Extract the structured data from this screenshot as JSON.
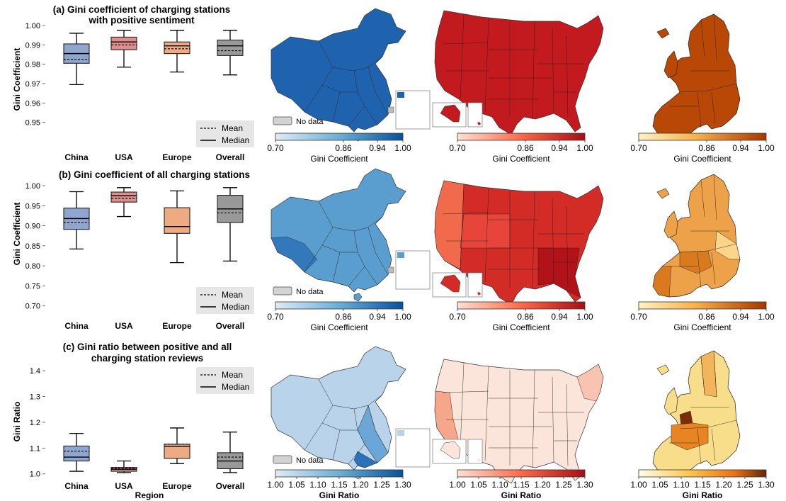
{
  "chart_data": [
    {
      "type": "box",
      "title_lines": [
        "(a) Gini coefficient of charging stations",
        "with positive sentiment"
      ],
      "ylabel": "Gini Coefficient",
      "xlabel": "",
      "ylim": [
        0.94,
        1.0
      ],
      "yticks": [
        "0.95",
        "0.96",
        "0.97",
        "0.98",
        "0.99",
        "1.00"
      ],
      "categories": [
        "China",
        "USA",
        "Europe",
        "Overall"
      ],
      "colors": [
        "#8fa6d0",
        "#de8c8c",
        "#eeaa80",
        "#999999"
      ],
      "boxes": [
        {
          "whislo": 0.9695,
          "q1": 0.9805,
          "med": 0.9855,
          "mean": 0.9825,
          "q3": 0.9905,
          "whishi": 0.996
        },
        {
          "whislo": 0.9785,
          "q1": 0.9875,
          "med": 0.9915,
          "mean": 0.99,
          "q3": 0.994,
          "whishi": 0.9975
        },
        {
          "whislo": 0.976,
          "q1": 0.9855,
          "med": 0.9895,
          "mean": 0.988,
          "q3": 0.9915,
          "whishi": 0.9975
        },
        {
          "whislo": 0.9745,
          "q1": 0.9845,
          "med": 0.9895,
          "mean": 0.987,
          "q3": 0.9925,
          "whishi": 0.9975
        }
      ],
      "legend": {
        "mean_label": "Mean",
        "median_label": "Median",
        "placement": "bottom-right"
      }
    },
    {
      "type": "box",
      "title_lines": [
        "(b) Gini coefficient of all charging stations"
      ],
      "ylabel": "Gini Coefficient",
      "xlabel": "",
      "ylim": [
        0.68,
        1.0
      ],
      "yticks": [
        "0.70",
        "0.75",
        "0.80",
        "0.85",
        "0.90",
        "0.95",
        "1.00"
      ],
      "categories": [
        "China",
        "USA",
        "Europe",
        "Overall"
      ],
      "colors": [
        "#8fa6d0",
        "#de8c8c",
        "#eeaa80",
        "#999999"
      ],
      "boxes": [
        {
          "whislo": 0.842,
          "q1": 0.891,
          "med": 0.918,
          "mean": 0.908,
          "q3": 0.944,
          "whishi": 0.985
        },
        {
          "whislo": 0.923,
          "q1": 0.959,
          "med": 0.975,
          "mean": 0.968,
          "q3": 0.984,
          "whishi": 0.995
        },
        {
          "whislo": 0.808,
          "q1": 0.881,
          "med": 0.898,
          "mean": 0.898,
          "q3": 0.945,
          "whishi": 0.987
        },
        {
          "whislo": 0.812,
          "q1": 0.908,
          "med": 0.942,
          "mean": 0.932,
          "q3": 0.976,
          "whishi": 0.995
        }
      ],
      "legend": {
        "mean_label": "Mean",
        "median_label": "Median",
        "placement": "bottom-right"
      }
    },
    {
      "type": "box",
      "title_lines": [
        "(c) Gini ratio between positive and all",
        "charging station reviews"
      ],
      "ylabel": "Gini Ratio",
      "xlabel": "Region",
      "ylim": [
        0.98,
        1.45
      ],
      "yticks": [
        "1.0",
        "1.1",
        "1.2",
        "1.3",
        "1.4"
      ],
      "categories": [
        "China",
        "USA",
        "Europe",
        "Overall"
      ],
      "colors": [
        "#8fa6d0",
        "#de8c8c",
        "#eeaa80",
        "#999999"
      ],
      "boxes": [
        {
          "whislo": 1.01,
          "q1": 1.05,
          "med": 1.065,
          "mean": 1.088,
          "q3": 1.108,
          "whishi": 1.157
        },
        {
          "whislo": 1.005,
          "q1": 1.01,
          "med": 1.018,
          "mean": 1.022,
          "q3": 1.025,
          "whishi": 1.05
        },
        {
          "whislo": 1.04,
          "q1": 1.06,
          "med": 1.107,
          "mean": 1.115,
          "q3": 1.115,
          "whishi": 1.178
        },
        {
          "whislo": 1.005,
          "q1": 1.02,
          "med": 1.05,
          "mean": 1.065,
          "q3": 1.082,
          "whishi": 1.162
        }
      ],
      "legend": {
        "mean_label": "Mean",
        "median_label": "Median",
        "placement": "top-right"
      }
    }
  ],
  "maps": {
    "nodata_label": "No data",
    "regions": [
      "China",
      "USA",
      "Europe"
    ],
    "rows": [
      {
        "china_color": "#1f63ae",
        "usa_color": "#c21a1e",
        "europe_color": "#b94806",
        "colorbars": [
          {
            "cmap": "Blues",
            "ticks": [
              "0.70",
              "0.86",
              "0.94",
              "1.00"
            ],
            "label": "Gini Coefficient"
          },
          {
            "cmap": "Reds",
            "ticks": [
              "0.70",
              "0.86",
              "0.94",
              "1.00"
            ],
            "label": "Gini Coefficient"
          },
          {
            "cmap": "Oranges",
            "ticks": [
              "0.70",
              "0.86",
              "0.94",
              "1.00"
            ],
            "label": "Gini Coefficient"
          }
        ]
      },
      {
        "china_color": "#5a9ed0",
        "usa_color": "#d32b26",
        "europe_color": "#eda24a",
        "colorbars": [
          {
            "cmap": "Blues",
            "ticks": [
              "0.70",
              "0.86",
              "0.94",
              "1.00"
            ],
            "label": "Gini Coefficient"
          },
          {
            "cmap": "Reds",
            "ticks": [
              "0.70",
              "0.86",
              "0.94",
              "1.00"
            ],
            "label": "Gini Coefficient"
          },
          {
            "cmap": "Oranges",
            "ticks": [
              "0.70",
              "0.86",
              "0.94",
              "1.00"
            ],
            "label": "Gini Coefficient"
          }
        ]
      },
      {
        "china_color": "#b9d3ea",
        "usa_color": "#fbe4da",
        "europe_color": "#f8dd8a",
        "colorbars": [
          {
            "cmap": "Blues",
            "ticks": [
              "1.00",
              "1.05",
              "1.10",
              "1.15",
              "1.20",
              "1.25",
              "1.30"
            ],
            "label": "Gini Ratio"
          },
          {
            "cmap": "Reds",
            "ticks": [
              "1.00",
              "1.05",
              "1.10",
              "1.15",
              "1.20",
              "1.25",
              "1.30"
            ],
            "label": "Gini Ratio"
          },
          {
            "cmap": "YlOrBr",
            "ticks": [
              "1.00",
              "1.05",
              "1.10",
              "1.15",
              "1.20",
              "1.25",
              "1.30"
            ],
            "label": "Gini Ratio"
          }
        ]
      }
    ]
  }
}
